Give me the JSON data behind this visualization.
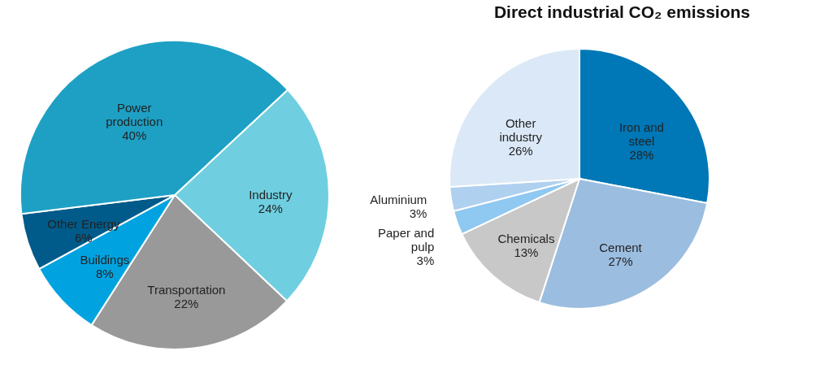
{
  "chart_data": [
    {
      "type": "pie",
      "categories": [
        "Industry",
        "Transportation",
        "Buildings",
        "Other Energy",
        "Power production"
      ],
      "values": [
        24,
        22,
        8,
        6,
        40
      ],
      "value_labels": [
        "24%",
        "22%",
        "8%",
        "6%",
        "40%"
      ],
      "colors": [
        "#6fcfe0",
        "#999999",
        "#00a3e0",
        "#005b8a",
        "#1ea0c4"
      ]
    },
    {
      "type": "pie",
      "title": "Direct industrial CO₂ emissions",
      "categories": [
        "Iron and steel",
        "Cement",
        "Chemicals",
        "Paper and pulp",
        "Aluminium",
        "Other industry"
      ],
      "values": [
        28,
        27,
        13,
        3,
        3,
        26
      ],
      "value_labels": [
        "28%",
        "27%",
        "13%",
        "3%",
        "3%",
        "26%"
      ],
      "colors": [
        "#0077b6",
        "#9bbde0",
        "#c8c8c8",
        "#8fc8f0",
        "#b0d0f0",
        "#dbe8f7"
      ]
    }
  ]
}
